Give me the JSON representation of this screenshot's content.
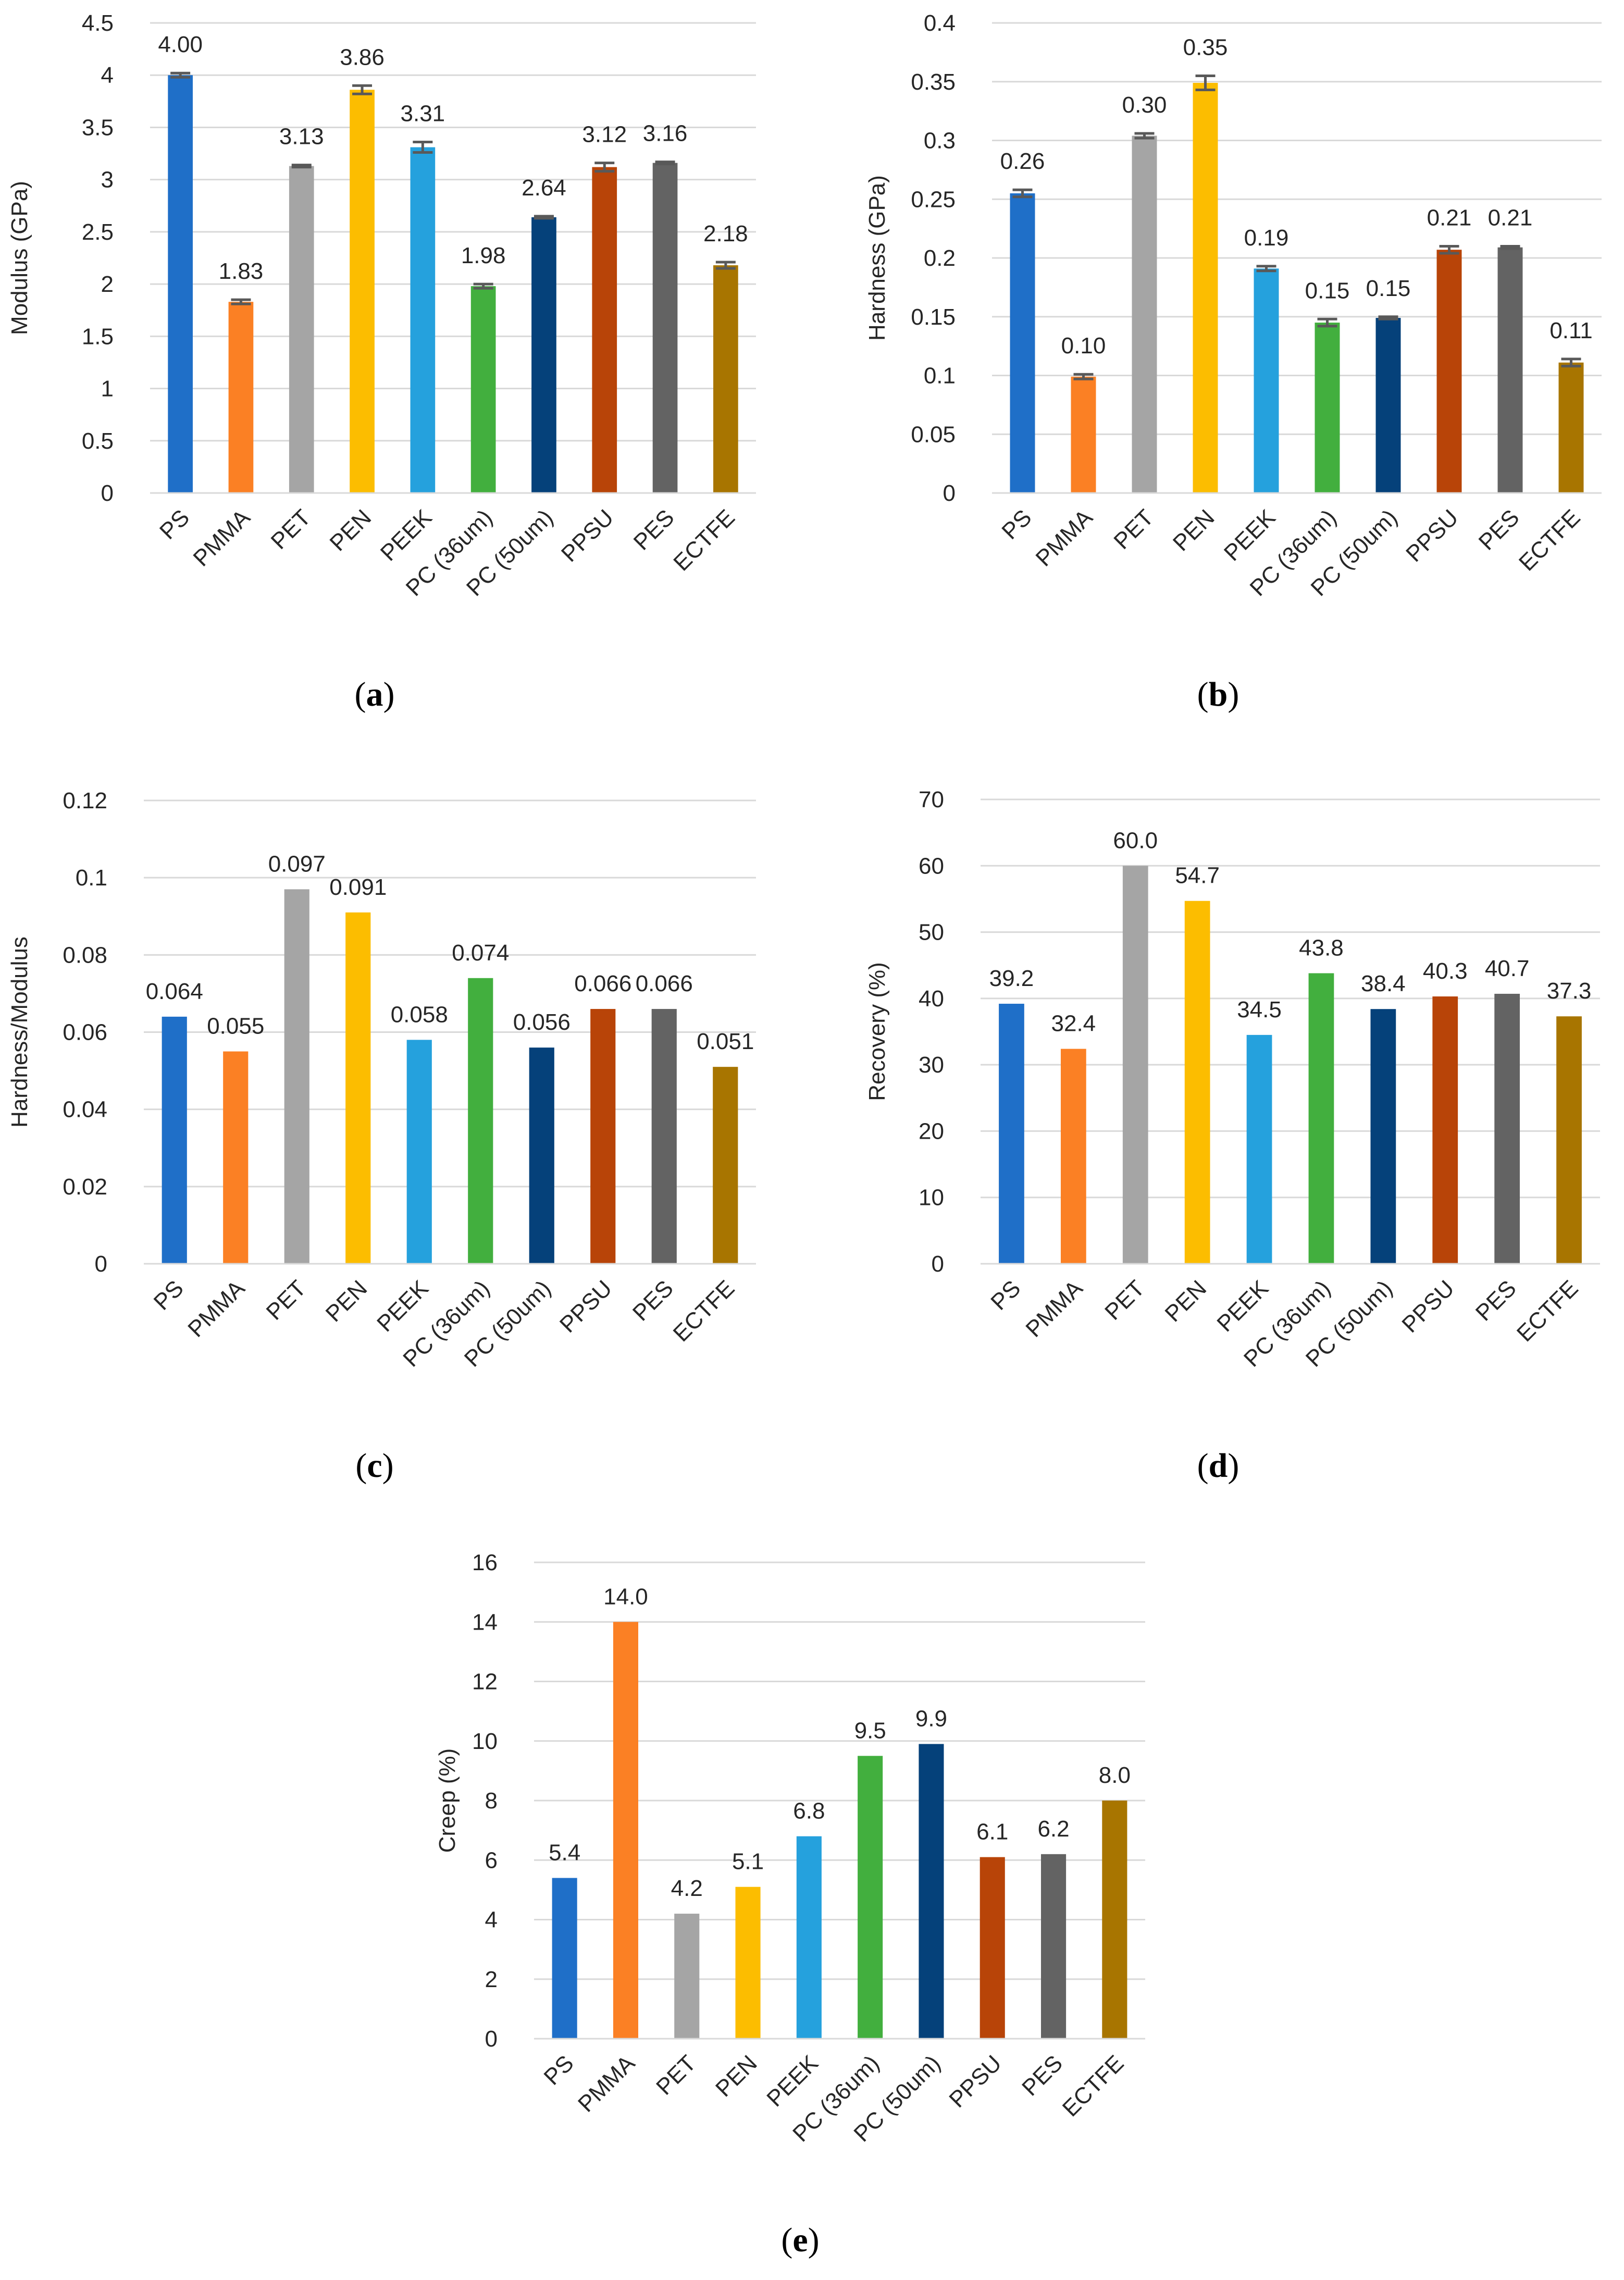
{
  "colors": [
    "#1f6fc8",
    "#fb8024",
    "#a5a5a5",
    "#fcbd00",
    "#25a1dd",
    "#42af3e",
    "#05417a",
    "#b84408",
    "#636363",
    "#a87500"
  ],
  "chart_data": [
    {
      "id": "a",
      "type": "bar",
      "caption": "a",
      "caption_open": "(",
      "caption_close": ")",
      "ylabel": "Modulus (GPa)",
      "ylim": [
        0,
        4.5
      ],
      "yticks": [
        "0",
        "0.5",
        "1",
        "1.5",
        "2",
        "2.5",
        "3",
        "3.5",
        "4",
        "4.5"
      ],
      "categories": [
        "PS",
        "PMMA",
        "PET",
        "PEN",
        "PEEK",
        "PC (36um)",
        "PC (50um)",
        "PPSU",
        "PES",
        "ECTFE"
      ],
      "values": [
        4.0,
        1.83,
        3.13,
        3.86,
        3.31,
        1.98,
        2.64,
        3.12,
        3.16,
        2.18
      ],
      "labels": [
        "4.00",
        "1.83",
        "3.13",
        "3.86",
        "3.31",
        "1.98",
        "2.64",
        "3.12",
        "3.16",
        "2.18"
      ],
      "errors": [
        0.02,
        0.02,
        0.01,
        0.04,
        0.05,
        0.02,
        0.01,
        0.04,
        0.01,
        0.03
      ]
    },
    {
      "id": "b",
      "type": "bar",
      "caption": "b",
      "caption_open": "(",
      "caption_close": ")",
      "ylabel": "Hardness (GPa)",
      "ylim": [
        0,
        0.4
      ],
      "yticks": [
        "0",
        "0.05",
        "0.1",
        "0.15",
        "0.2",
        "0.25",
        "0.3",
        "0.35",
        "0.4"
      ],
      "categories": [
        "PS",
        "PMMA",
        "PET",
        "PEN",
        "PEEK",
        "PC (36um)",
        "PC (50um)",
        "PPSU",
        "PES",
        "ECTFE"
      ],
      "values": [
        0.255,
        0.099,
        0.304,
        0.349,
        0.191,
        0.145,
        0.149,
        0.207,
        0.209,
        0.111
      ],
      "labels": [
        "0.26",
        "0.10",
        "0.30",
        "0.35",
        "0.19",
        "0.15",
        "0.15",
        "0.21",
        "0.21",
        "0.11"
      ],
      "errors": [
        0.003,
        0.002,
        0.002,
        0.006,
        0.002,
        0.003,
        0.001,
        0.003,
        0.001,
        0.003
      ]
    },
    {
      "id": "c",
      "type": "bar",
      "caption": "c",
      "caption_open": "(",
      "caption_close": ")",
      "ylabel": "Hardness/Modulus",
      "ylim": [
        0,
        0.12
      ],
      "yticks": [
        "0",
        "0.02",
        "0.04",
        "0.06",
        "0.08",
        "0.1",
        "0.12"
      ],
      "categories": [
        "PS",
        "PMMA",
        "PET",
        "PEN",
        "PEEK",
        "PC (36um)",
        "PC (50um)",
        "PPSU",
        "PES",
        "ECTFE"
      ],
      "values": [
        0.064,
        0.055,
        0.097,
        0.091,
        0.058,
        0.074,
        0.056,
        0.066,
        0.066,
        0.051
      ],
      "labels": [
        "0.064",
        "0.055",
        "0.097",
        "0.091",
        "0.058",
        "0.074",
        "0.056",
        "0.066",
        "0.066",
        "0.051"
      ]
    },
    {
      "id": "d",
      "type": "bar",
      "caption": "d",
      "caption_open": "(",
      "caption_close": ")",
      "ylabel": "Recovery (%)",
      "ylim": [
        0,
        70
      ],
      "yticks": [
        "0",
        "10",
        "20",
        "30",
        "40",
        "50",
        "60",
        "70"
      ],
      "categories": [
        "PS",
        "PMMA",
        "PET",
        "PEN",
        "PEEK",
        "PC (36um)",
        "PC (50um)",
        "PPSU",
        "PES",
        "ECTFE"
      ],
      "values": [
        39.2,
        32.4,
        60.0,
        54.7,
        34.5,
        43.8,
        38.4,
        40.3,
        40.7,
        37.3
      ],
      "labels": [
        "39.2",
        "32.4",
        "60.0",
        "54.7",
        "34.5",
        "43.8",
        "38.4",
        "40.3",
        "40.7",
        "37.3"
      ]
    },
    {
      "id": "e",
      "type": "bar",
      "caption": "e",
      "caption_open": "(",
      "caption_close": ")",
      "ylabel": "Creep (%)",
      "ylim": [
        0,
        16
      ],
      "yticks": [
        "0",
        "2",
        "4",
        "6",
        "8",
        "10",
        "12",
        "14",
        "16"
      ],
      "categories": [
        "PS",
        "PMMA",
        "PET",
        "PEN",
        "PEEK",
        "PC (36um)",
        "PC (50um)",
        "PPSU",
        "PES",
        "ECTFE"
      ],
      "values": [
        5.4,
        14.0,
        4.2,
        5.1,
        6.8,
        9.5,
        9.9,
        6.1,
        6.2,
        8.0
      ],
      "labels": [
        "5.4",
        "14.0",
        "4.2",
        "5.1",
        "6.8",
        "9.5",
        "9.9",
        "6.1",
        "6.2",
        "8.0"
      ]
    }
  ]
}
